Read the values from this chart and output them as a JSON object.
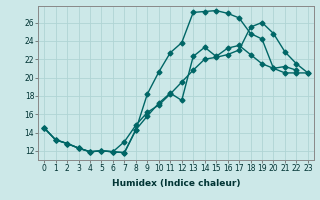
{
  "xlabel": "Humidex (Indice chaleur)",
  "bg_color": "#cce8e8",
  "grid_color": "#b0d4d4",
  "line_color": "#006666",
  "xlim": [
    -0.5,
    23.5
  ],
  "ylim": [
    11.0,
    27.8
  ],
  "xticks": [
    0,
    1,
    2,
    3,
    4,
    5,
    6,
    7,
    8,
    9,
    10,
    11,
    12,
    13,
    14,
    15,
    16,
    17,
    18,
    19,
    20,
    21,
    22,
    23
  ],
  "yticks": [
    12,
    14,
    16,
    18,
    20,
    22,
    24,
    26
  ],
  "line1_x": [
    0,
    1,
    2,
    3,
    4,
    5,
    6,
    7,
    8,
    9,
    10,
    11,
    12,
    13,
    14,
    15,
    16,
    17,
    18,
    19,
    20,
    21,
    22
  ],
  "line1_y": [
    14.5,
    13.2,
    12.8,
    12.3,
    11.9,
    12.0,
    11.9,
    11.8,
    14.3,
    18.2,
    20.6,
    22.7,
    23.8,
    27.1,
    27.2,
    27.3,
    27.0,
    26.5,
    24.8,
    24.2,
    21.0,
    21.2,
    20.8
  ],
  "line2_x": [
    0,
    1,
    2,
    3,
    4,
    5,
    6,
    7,
    8,
    9,
    10,
    11,
    12,
    13,
    14,
    15,
    16,
    17,
    18,
    19,
    20,
    21,
    22,
    23
  ],
  "line2_y": [
    14.5,
    13.2,
    12.8,
    12.3,
    11.9,
    12.0,
    11.9,
    13.0,
    14.8,
    16.2,
    17.0,
    18.2,
    19.5,
    20.8,
    22.0,
    22.2,
    22.5,
    23.0,
    25.5,
    26.0,
    24.8,
    22.8,
    21.5,
    20.5
  ],
  "line3_x": [
    0,
    1,
    2,
    3,
    4,
    5,
    6,
    7,
    8,
    9,
    10,
    11,
    12,
    13,
    14,
    15,
    16,
    17,
    18,
    19,
    20,
    21,
    22,
    23
  ],
  "line3_y": [
    14.5,
    13.2,
    12.8,
    12.3,
    11.9,
    12.0,
    11.9,
    11.8,
    14.3,
    15.8,
    17.2,
    18.3,
    17.5,
    22.3,
    23.3,
    22.3,
    23.2,
    23.5,
    22.5,
    21.5,
    21.0,
    20.5,
    20.5,
    20.5
  ],
  "marker": "D",
  "markersize": 2.5,
  "linewidth": 1.0,
  "tick_fontsize": 5.5,
  "xlabel_fontsize": 6.5
}
